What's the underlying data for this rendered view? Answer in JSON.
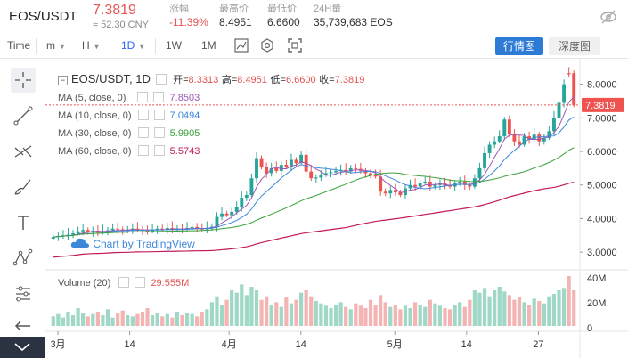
{
  "ticker": {
    "symbol": "EOS/USDT",
    "price": "7.3819",
    "cny": "≈ 52.30 CNY",
    "stats": [
      {
        "label": "涨幅",
        "value": "-11.39%",
        "red": true
      },
      {
        "label": "最高价",
        "value": "8.4951",
        "red": false
      },
      {
        "label": "最低价",
        "value": "6.6600",
        "red": false
      },
      {
        "label": "24H量",
        "value": "35,739,683 EOS",
        "red": false
      }
    ]
  },
  "toolbar": {
    "time": "Time",
    "m": "m",
    "h": "H",
    "d": "1D",
    "w": "1W",
    "mo": "1M",
    "chart_btn": "行情图",
    "depth_btn": "深度图"
  },
  "legend": {
    "pair": "EOS/USDT, 1D",
    "open_label": "开=",
    "open": "8.3313",
    "high_label": "高=",
    "high": "8.4951",
    "low_label": "低=",
    "low": "6.6600",
    "close_label": "收=",
    "close": "7.3819",
    "ma": [
      {
        "label": "MA (5, close, 0)",
        "value": "7.8503",
        "color": "#9b59b6"
      },
      {
        "label": "MA (10, close, 0)",
        "value": "7.0494",
        "color": "#3d87d9"
      },
      {
        "label": "MA (30, close, 0)",
        "value": "5.9905",
        "color": "#3aa13a"
      },
      {
        "label": "MA (60, close, 0)",
        "value": "5.5743",
        "color": "#c2185b"
      }
    ],
    "volume_label": "Volume (20)",
    "volume_value": "29.555M"
  },
  "watermark": "Chart by TradingView",
  "colors": {
    "up": "#26a69a",
    "down": "#ef5350",
    "up_vol": "#9fd8c6",
    "down_vol": "#f4b4b4",
    "price_tag": "#ef5350",
    "ma5": "#9b59b6",
    "ma10": "#3d87d9",
    "ma30": "#3aa13a",
    "ma60": "#c2185b"
  },
  "chart_data": {
    "type": "candlestick",
    "price_axis": [
      "8.0000",
      "7.0000",
      "6.0000",
      "5.0000",
      "4.0000",
      "3.0000"
    ],
    "price_tag": "7.3819",
    "volume_axis": [
      "40M",
      "20M",
      "0"
    ],
    "time_axis": [
      "3月",
      "14",
      "4月",
      "14",
      "5月",
      "14",
      "27"
    ],
    "ylim": [
      2.5,
      8.6
    ],
    "candles_close": [
      3.45,
      3.48,
      3.5,
      3.52,
      3.56,
      3.62,
      3.66,
      3.6,
      3.64,
      3.58,
      3.62,
      3.65,
      3.7,
      3.68,
      3.62,
      3.66,
      3.7,
      3.68,
      3.65,
      3.62,
      3.66,
      3.7,
      3.68,
      3.72,
      3.66,
      3.7,
      3.68,
      3.72,
      3.75,
      3.7,
      3.68,
      3.72,
      3.76,
      4.05,
      4.15,
      4.1,
      4.2,
      4.35,
      4.62,
      4.7,
      5.2,
      5.8,
      5.55,
      5.35,
      5.5,
      5.42,
      5.6,
      5.55,
      5.75,
      5.65,
      5.9,
      5.4,
      5.2,
      5.22,
      5.3,
      5.35,
      5.38,
      5.42,
      5.45,
      5.4,
      5.5,
      5.48,
      5.42,
      5.35,
      5.3,
      5.25,
      4.8,
      4.75,
      4.85,
      4.78,
      4.7,
      4.9,
      5.0,
      4.95,
      5.05,
      5.1,
      4.95,
      5.0,
      5.05,
      4.98,
      4.95,
      5.05,
      5.1,
      5.0,
      4.95,
      5.2,
      5.5,
      5.95,
      6.2,
      6.3,
      6.45,
      6.95,
      6.5,
      6.3,
      6.2,
      6.45,
      6.35,
      6.5,
      6.3,
      6.4,
      6.6,
      7.0,
      7.45,
      8.0,
      8.3,
      7.38
    ],
    "candles_open": [
      3.4,
      3.45,
      3.48,
      3.5,
      3.52,
      3.56,
      3.62,
      3.66,
      3.6,
      3.64,
      3.58,
      3.62,
      3.65,
      3.7,
      3.68,
      3.62,
      3.66,
      3.7,
      3.68,
      3.65,
      3.62,
      3.66,
      3.7,
      3.68,
      3.72,
      3.66,
      3.7,
      3.68,
      3.72,
      3.75,
      3.7,
      3.68,
      3.72,
      3.76,
      4.05,
      4.15,
      4.1,
      4.2,
      4.35,
      4.62,
      4.7,
      5.2,
      5.8,
      5.55,
      5.35,
      5.5,
      5.42,
      5.6,
      5.55,
      5.75,
      5.65,
      5.9,
      5.4,
      5.2,
      5.22,
      5.3,
      5.35,
      5.38,
      5.42,
      5.45,
      5.4,
      5.5,
      5.48,
      5.42,
      5.35,
      5.3,
      5.25,
      4.8,
      4.75,
      4.85,
      4.78,
      4.7,
      4.9,
      5.0,
      4.95,
      5.05,
      5.1,
      4.95,
      5.0,
      5.05,
      4.98,
      4.95,
      5.05,
      5.1,
      5.0,
      4.95,
      5.2,
      5.5,
      5.95,
      6.2,
      6.3,
      6.45,
      6.95,
      6.5,
      6.3,
      6.2,
      6.45,
      6.35,
      6.5,
      6.3,
      6.4,
      6.6,
      7.0,
      7.45,
      8.33,
      8.33
    ],
    "volume": [
      8,
      10,
      7,
      12,
      9,
      15,
      11,
      8,
      10,
      12,
      9,
      14,
      7,
      11,
      13,
      9,
      8,
      10,
      12,
      15,
      9,
      11,
      8,
      10,
      7,
      12,
      9,
      11,
      10,
      8,
      12,
      14,
      20,
      25,
      18,
      22,
      30,
      28,
      35,
      26,
      33,
      30,
      22,
      25,
      18,
      20,
      16,
      24,
      19,
      22,
      28,
      30,
      25,
      21,
      19,
      17,
      15,
      18,
      20,
      16,
      14,
      19,
      17,
      15,
      22,
      18,
      26,
      20,
      16,
      18,
      14,
      17,
      15,
      20,
      18,
      16,
      22,
      19,
      17,
      15,
      14,
      18,
      20,
      16,
      22,
      30,
      28,
      32,
      25,
      30,
      33,
      29,
      26,
      22,
      24,
      20,
      18,
      23,
      21,
      19,
      25,
      27,
      30,
      32,
      42,
      30
    ]
  }
}
